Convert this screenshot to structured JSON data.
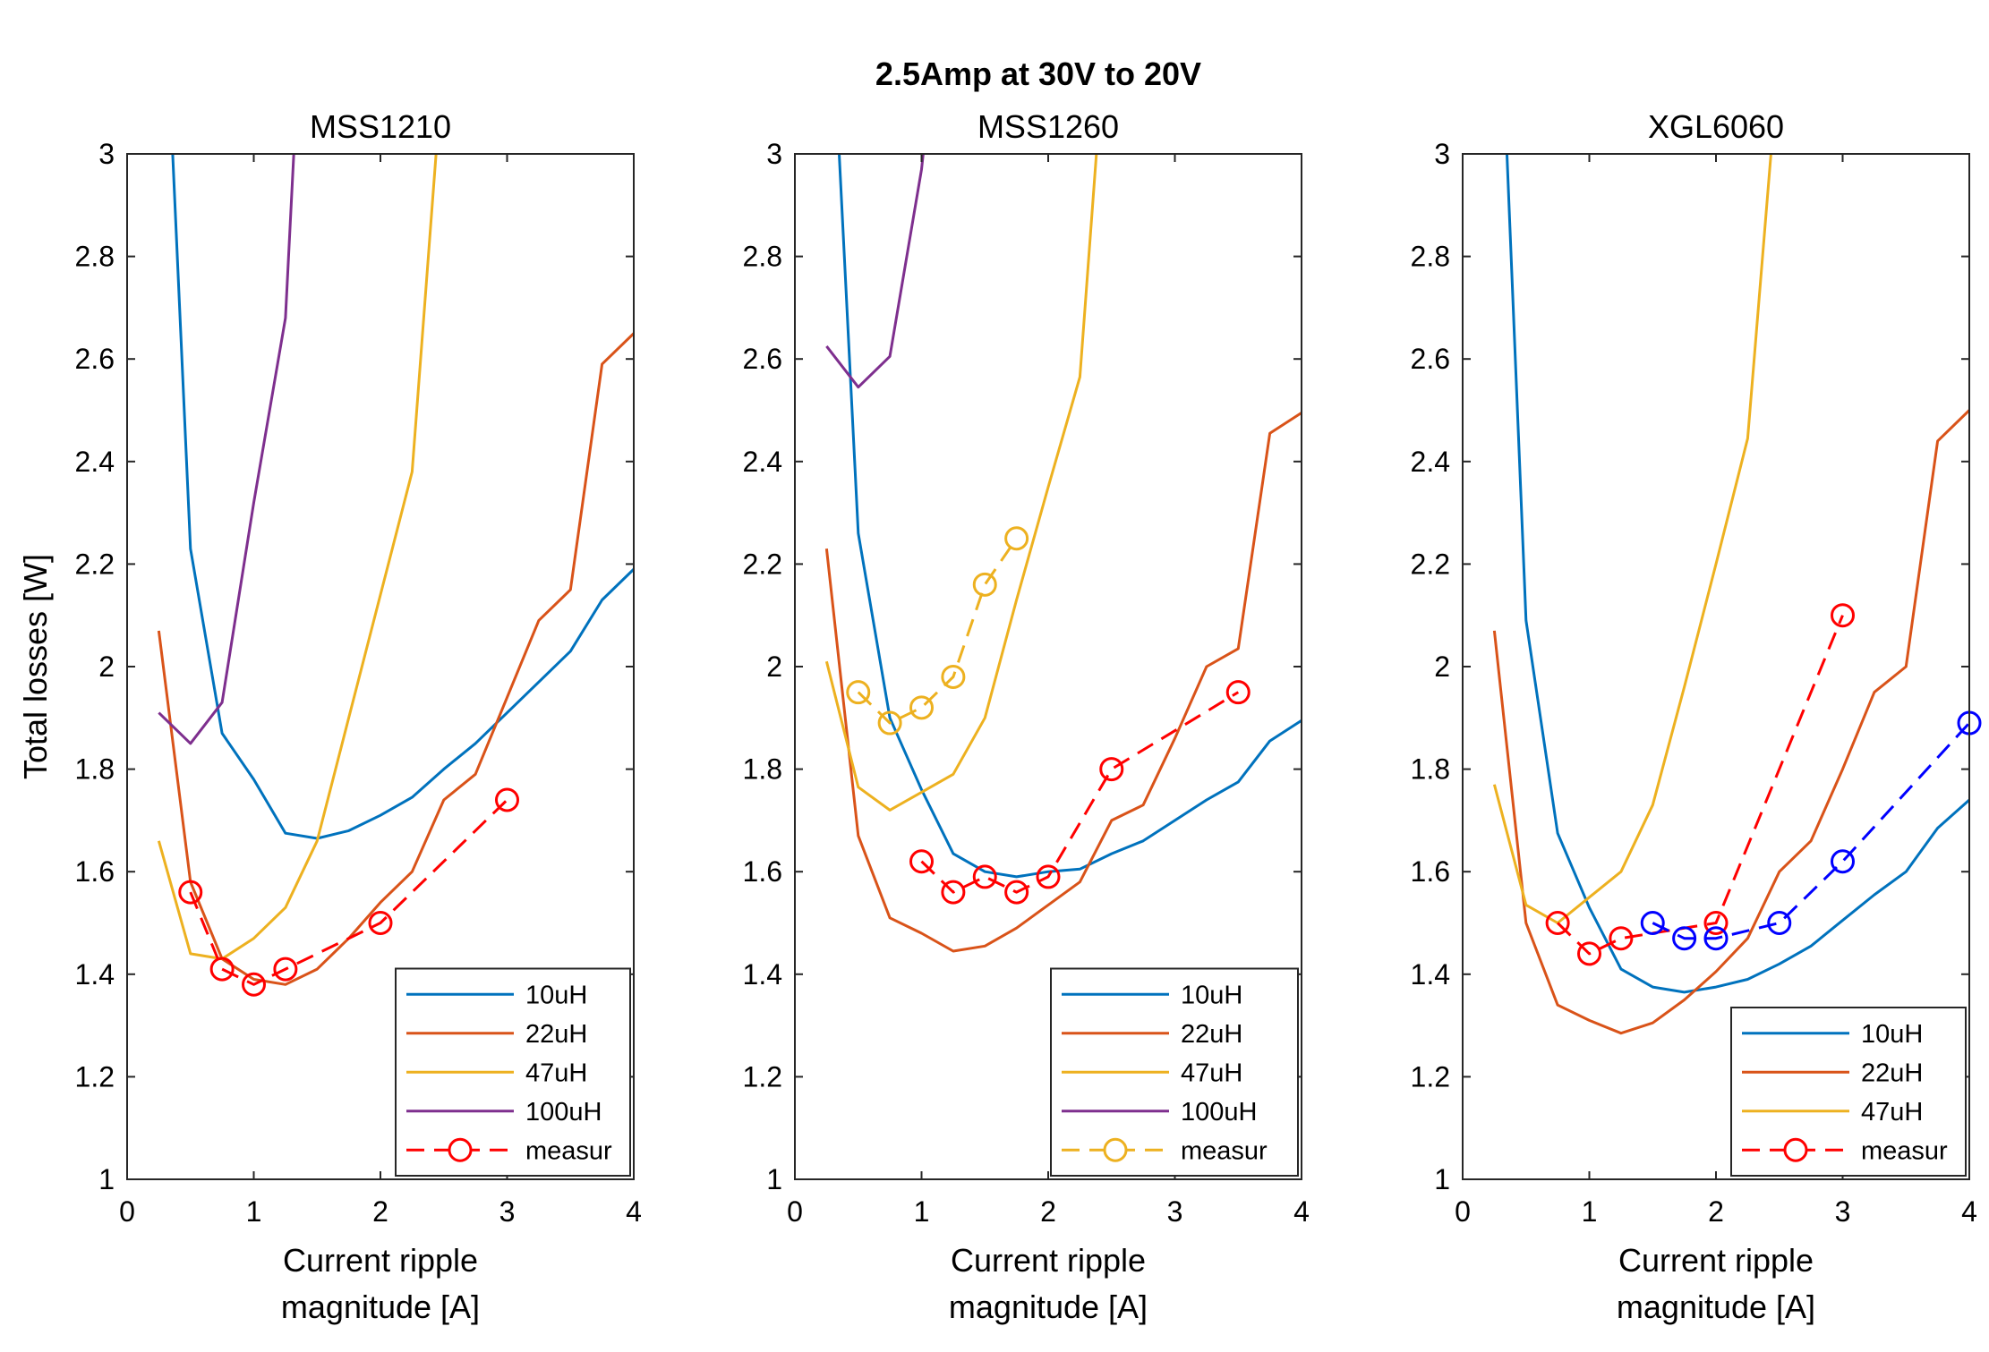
{
  "figure": {
    "suptitle": "2.5Amp at 30V to 20V"
  },
  "colors": {
    "10uH": "#0072BD",
    "22uH": "#D95319",
    "47uH": "#EDB120",
    "100uH": "#7E2F8E",
    "measur_red": "#FF0000",
    "measur_blue": "#0000FF"
  },
  "chart_data": [
    {
      "type": "line",
      "title": "MSS1210",
      "xlabel": [
        "Current ripple",
        "magnitude [A]"
      ],
      "ylabel": "Total losses [W]",
      "xlim": [
        0,
        4
      ],
      "ylim": [
        1,
        3
      ],
      "xticks": [
        "0",
        "1",
        "2",
        "3",
        "4"
      ],
      "yticks": [
        "1",
        "1.2",
        "1.4",
        "1.6",
        "1.8",
        "2",
        "2.2",
        "2.4",
        "2.6",
        "2.8",
        "3"
      ],
      "legend_position": "bottom-right",
      "series": [
        {
          "name": "10uH",
          "color": "#0072BD",
          "style": "solid",
          "x": [
            0.25,
            0.5,
            0.75,
            1.0,
            1.25,
            1.5,
            1.75,
            2.0,
            2.25,
            2.5,
            2.75,
            3.0,
            3.25,
            3.5,
            3.75,
            4.0
          ],
          "y": [
            3.6,
            2.23,
            1.87,
            1.78,
            1.675,
            1.665,
            1.68,
            1.71,
            1.745,
            1.8,
            1.85,
            1.91,
            1.97,
            2.03,
            2.13,
            2.19
          ]
        },
        {
          "name": "22uH",
          "color": "#D95319",
          "style": "solid",
          "x": [
            0.25,
            0.5,
            0.75,
            1.0,
            1.25,
            1.5,
            1.75,
            2.0,
            2.25,
            2.5,
            2.75,
            3.0,
            3.25,
            3.5,
            3.75,
            4.0
          ],
          "y": [
            2.07,
            1.58,
            1.43,
            1.39,
            1.38,
            1.41,
            1.47,
            1.54,
            1.6,
            1.74,
            1.79,
            1.94,
            2.09,
            2.15,
            2.59,
            2.65
          ]
        },
        {
          "name": "47uH",
          "color": "#EDB120",
          "style": "solid",
          "x": [
            0.25,
            0.5,
            0.75,
            1.0,
            1.25,
            1.5,
            1.75,
            2.0,
            2.25,
            2.5
          ],
          "y": [
            1.66,
            1.44,
            1.43,
            1.47,
            1.53,
            1.66,
            1.9,
            2.14,
            2.38,
            3.2
          ]
        },
        {
          "name": "100uH",
          "color": "#7E2F8E",
          "style": "solid",
          "x": [
            0.25,
            0.5,
            0.75,
            1.0,
            1.25,
            1.5
          ],
          "y": [
            1.91,
            1.85,
            1.93,
            2.32,
            2.68,
            3.9
          ]
        },
        {
          "name": "measur",
          "color": "#FF0000",
          "style": "dashed",
          "marker": "circle",
          "x": [
            0.5,
            0.75,
            1.0,
            1.25,
            2.0,
            3.0
          ],
          "y": [
            1.56,
            1.41,
            1.38,
            1.41,
            1.5,
            1.74
          ]
        }
      ]
    },
    {
      "type": "line",
      "title": "MSS1260",
      "xlabel": [
        "Current ripple",
        "magnitude [A]"
      ],
      "ylabel": "",
      "xlim": [
        0,
        4
      ],
      "ylim": [
        1,
        3
      ],
      "xticks": [
        "0",
        "1",
        "2",
        "3",
        "4"
      ],
      "yticks": [
        "1",
        "1.2",
        "1.4",
        "1.6",
        "1.8",
        "2",
        "2.2",
        "2.4",
        "2.6",
        "2.8",
        "3"
      ],
      "legend_position": "bottom-right",
      "series": [
        {
          "name": "10uH",
          "color": "#0072BD",
          "style": "solid",
          "x": [
            0.35,
            0.5,
            0.75,
            1.0,
            1.25,
            1.5,
            1.75,
            2.0,
            2.25,
            2.5,
            2.75,
            3.0,
            3.25,
            3.5,
            3.75,
            4.0
          ],
          "y": [
            3.0,
            2.26,
            1.9,
            1.76,
            1.635,
            1.6,
            1.59,
            1.6,
            1.605,
            1.635,
            1.66,
            1.7,
            1.74,
            1.775,
            1.855,
            1.895
          ]
        },
        {
          "name": "22uH",
          "color": "#D95319",
          "style": "solid",
          "x": [
            0.25,
            0.5,
            0.75,
            1.0,
            1.25,
            1.5,
            1.75,
            2.0,
            2.25,
            2.5,
            2.75,
            3.0,
            3.25,
            3.5,
            3.75,
            4.0
          ],
          "y": [
            2.23,
            1.67,
            1.51,
            1.48,
            1.445,
            1.455,
            1.49,
            1.535,
            1.58,
            1.7,
            1.73,
            1.86,
            2.0,
            2.035,
            2.455,
            2.495
          ]
        },
        {
          "name": "47uH",
          "color": "#EDB120",
          "style": "solid",
          "x": [
            0.25,
            0.5,
            0.75,
            1.0,
            1.25,
            1.5,
            1.75,
            2.0,
            2.25,
            2.5
          ],
          "y": [
            2.01,
            1.765,
            1.72,
            1.755,
            1.79,
            1.9,
            2.13,
            2.35,
            2.565,
            3.4
          ]
        },
        {
          "name": "100uH",
          "color": "#7E2F8E",
          "style": "solid",
          "x": [
            0.25,
            0.5,
            0.75,
            1.0,
            1.1
          ],
          "y": [
            2.625,
            2.545,
            2.605,
            2.97,
            3.2
          ]
        },
        {
          "name": "measur",
          "color": "#EDB120",
          "style": "dashed",
          "marker": "circle",
          "x": [
            0.5,
            0.75,
            1.0,
            1.25,
            1.5,
            1.75
          ],
          "y": [
            1.95,
            1.89,
            1.92,
            1.98,
            2.16,
            2.25
          ]
        },
        {
          "name": "",
          "color": "#FF0000",
          "style": "dashed",
          "marker": "circle",
          "legend": false,
          "x": [
            1.0,
            1.25,
            1.5,
            1.75,
            2.0,
            2.5,
            3.5
          ],
          "y": [
            1.62,
            1.56,
            1.59,
            1.56,
            1.59,
            1.8,
            1.95
          ]
        }
      ]
    },
    {
      "type": "line",
      "title": "XGL6060",
      "xlabel": [
        "Current ripple",
        "magnitude [A]"
      ],
      "ylabel": "",
      "xlim": [
        0,
        4
      ],
      "ylim": [
        1,
        3
      ],
      "xticks": [
        "0",
        "1",
        "2",
        "3",
        "4"
      ],
      "yticks": [
        "1",
        "1.2",
        "1.4",
        "1.6",
        "1.8",
        "2",
        "2.2",
        "2.4",
        "2.6",
        "2.8",
        "3"
      ],
      "legend_position": "bottom-right",
      "series": [
        {
          "name": "10uH",
          "color": "#0072BD",
          "style": "solid",
          "x": [
            0.25,
            0.5,
            0.75,
            1.0,
            1.25,
            1.5,
            1.75,
            2.0,
            2.25,
            2.5,
            2.75,
            3.0,
            3.25,
            3.5,
            3.75,
            4.0
          ],
          "y": [
            3.6,
            2.09,
            1.675,
            1.53,
            1.41,
            1.375,
            1.365,
            1.375,
            1.39,
            1.42,
            1.455,
            1.505,
            1.555,
            1.6,
            1.685,
            1.74
          ]
        },
        {
          "name": "22uH",
          "color": "#D95319",
          "style": "solid",
          "x": [
            0.25,
            0.5,
            0.75,
            1.0,
            1.25,
            1.5,
            1.75,
            2.0,
            2.25,
            2.5,
            2.75,
            3.0,
            3.25,
            3.5,
            3.75,
            4.0
          ],
          "y": [
            2.07,
            1.5,
            1.34,
            1.31,
            1.285,
            1.305,
            1.35,
            1.405,
            1.47,
            1.6,
            1.66,
            1.8,
            1.95,
            2.0,
            2.44,
            2.5
          ]
        },
        {
          "name": "47uH",
          "color": "#EDB120",
          "style": "solid",
          "x": [
            0.25,
            0.5,
            0.75,
            1.0,
            1.25,
            1.5,
            1.75,
            2.0,
            2.25,
            2.5
          ],
          "y": [
            1.77,
            1.535,
            1.5,
            1.55,
            1.6,
            1.73,
            1.96,
            2.2,
            2.445,
            3.2
          ]
        },
        {
          "name": "measur",
          "color": "#FF0000",
          "style": "dashed",
          "marker": "circle",
          "x": [
            0.75,
            1.0,
            1.25,
            2.0,
            3.0
          ],
          "y": [
            1.5,
            1.44,
            1.47,
            1.5,
            2.1
          ]
        },
        {
          "name": "",
          "color": "#0000FF",
          "style": "dashed",
          "marker": "circle",
          "legend": false,
          "x": [
            1.5,
            1.75,
            2.0,
            2.5,
            3.0,
            4.0
          ],
          "y": [
            1.5,
            1.47,
            1.47,
            1.5,
            1.62,
            1.89
          ]
        }
      ]
    }
  ]
}
